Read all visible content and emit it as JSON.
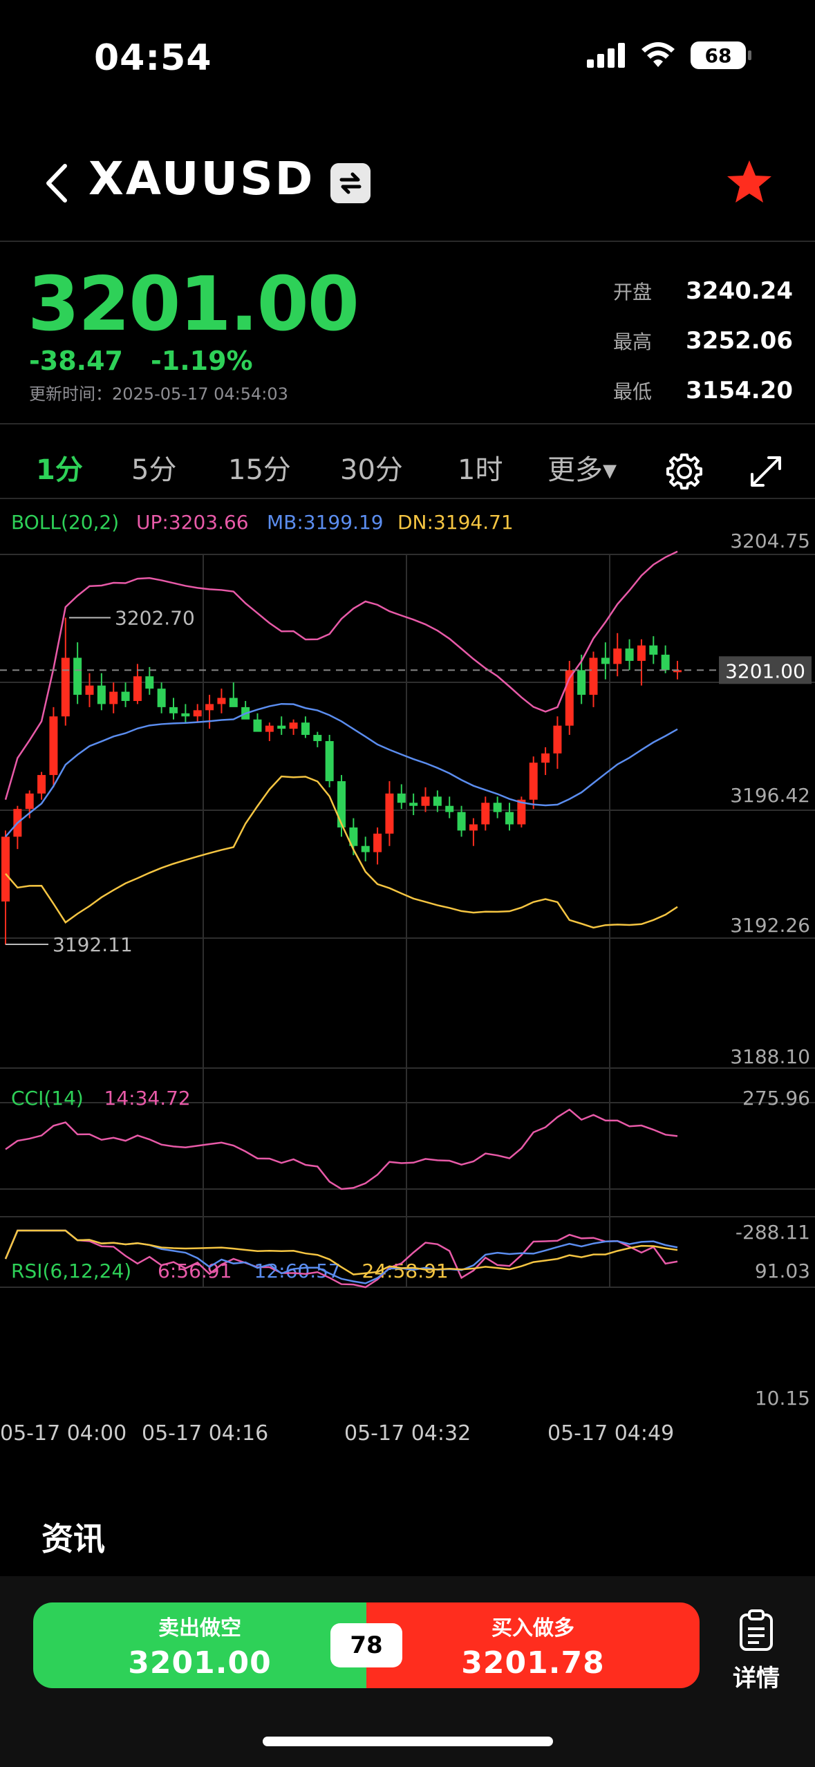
{
  "status_bar": {
    "time": "04:54",
    "battery": "68"
  },
  "header": {
    "symbol": "XAUUSD"
  },
  "quote": {
    "price": "3201.00",
    "change": "-38.47",
    "change_pct": "-1.19%",
    "update_time": "更新时间：2025-05-17 04:54:03",
    "open_label": "开盘",
    "open": "3240.24",
    "high_label": "最高",
    "high": "3252.06",
    "low_label": "最低",
    "low": "3154.20"
  },
  "tabs": [
    "1分",
    "5分",
    "15分",
    "30分",
    "1时",
    "更多▾"
  ],
  "active_tab": 0,
  "colors": {
    "up": "#2ed158",
    "down": "#ff2d1e",
    "boll_up": "#e85aa8",
    "boll_mb": "#5b8def",
    "boll_dn": "#f5c542"
  },
  "chart_data": [
    {
      "type": "candlestick",
      "title": "BOLL(20,2)",
      "legend": [
        "UP:3203.66",
        "MB:3199.19",
        "DN:3194.71"
      ],
      "y_ticks": [
        "3204.75",
        "3196.42",
        "3192.26",
        "3188.10"
      ],
      "ylim": [
        3188.1,
        3204.75
      ],
      "current_price_label": "3201.00",
      "max_label": "3202.70",
      "min_label": "3192.11",
      "x_ticks": [
        "05-17 04:00",
        "05-17 04:16",
        "05-17 04:32",
        "05-17 04:49"
      ],
      "candles": [
        [
          3193.5,
          3192.1,
          3195.8,
          3195.6
        ],
        [
          3195.6,
          3195.2,
          3196.6,
          3196.5
        ],
        [
          3196.5,
          3196.2,
          3197.1,
          3197.0
        ],
        [
          3197.0,
          3196.8,
          3197.7,
          3197.6
        ],
        [
          3197.6,
          3197.2,
          3199.8,
          3199.5
        ],
        [
          3199.5,
          3199.2,
          3202.7,
          3201.4
        ],
        [
          3201.4,
          3199.9,
          3201.9,
          3200.2
        ],
        [
          3200.2,
          3199.8,
          3200.9,
          3200.5
        ],
        [
          3200.5,
          3199.7,
          3200.9,
          3199.9
        ],
        [
          3199.9,
          3199.6,
          3200.6,
          3200.3
        ],
        [
          3200.3,
          3199.8,
          3200.6,
          3200.0
        ],
        [
          3200.0,
          3199.9,
          3201.2,
          3200.8
        ],
        [
          3200.8,
          3200.2,
          3201.1,
          3200.4
        ],
        [
          3200.4,
          3199.6,
          3200.6,
          3199.8
        ],
        [
          3199.8,
          3199.4,
          3200.1,
          3199.6
        ],
        [
          3199.6,
          3199.3,
          3199.9,
          3199.5
        ],
        [
          3199.5,
          3199.3,
          3199.9,
          3199.7
        ],
        [
          3199.7,
          3199.1,
          3200.2,
          3199.9
        ],
        [
          3199.9,
          3199.6,
          3200.4,
          3200.1
        ],
        [
          3200.1,
          3199.9,
          3200.6,
          3199.8
        ],
        [
          3199.8,
          3199.5,
          3200.0,
          3199.4
        ],
        [
          3199.4,
          3199.2,
          3199.6,
          3199.0
        ],
        [
          3199.0,
          3198.7,
          3199.3,
          3199.2
        ],
        [
          3199.2,
          3198.9,
          3199.5,
          3199.1
        ],
        [
          3199.1,
          3198.9,
          3199.4,
          3199.3
        ],
        [
          3199.3,
          3198.8,
          3199.5,
          3198.9
        ],
        [
          3198.9,
          3198.5,
          3199.0,
          3198.7
        ],
        [
          3198.7,
          3197.2,
          3198.9,
          3197.4
        ],
        [
          3197.4,
          3195.6,
          3197.6,
          3195.9
        ],
        [
          3195.9,
          3195.0,
          3196.2,
          3195.3
        ],
        [
          3195.3,
          3194.8,
          3195.6,
          3195.1
        ],
        [
          3195.1,
          3194.7,
          3195.9,
          3195.7
        ],
        [
          3195.7,
          3195.3,
          3197.4,
          3197.0
        ],
        [
          3197.0,
          3196.5,
          3197.3,
          3196.7
        ],
        [
          3196.7,
          3196.3,
          3197.0,
          3196.6
        ],
        [
          3196.6,
          3196.4,
          3197.2,
          3196.9
        ],
        [
          3196.9,
          3196.4,
          3197.1,
          3196.6
        ],
        [
          3196.6,
          3196.2,
          3196.9,
          3196.4
        ],
        [
          3196.4,
          3195.6,
          3196.6,
          3195.8
        ],
        [
          3195.8,
          3195.3,
          3196.2,
          3196.0
        ],
        [
          3196.0,
          3195.8,
          3196.9,
          3196.7
        ],
        [
          3196.7,
          3196.2,
          3196.9,
          3196.4
        ],
        [
          3196.4,
          3195.8,
          3196.7,
          3196.0
        ],
        [
          3196.0,
          3195.9,
          3196.9,
          3196.8
        ],
        [
          3196.8,
          3196.5,
          3198.2,
          3198.0
        ],
        [
          3198.0,
          3197.6,
          3198.5,
          3198.3
        ],
        [
          3198.3,
          3197.8,
          3199.5,
          3199.2
        ],
        [
          3199.2,
          3198.9,
          3201.3,
          3201.0
        ],
        [
          3201.0,
          3199.9,
          3201.5,
          3200.2
        ],
        [
          3200.2,
          3199.8,
          3201.6,
          3201.4
        ],
        [
          3201.4,
          3200.7,
          3201.9,
          3201.2
        ],
        [
          3201.2,
          3200.8,
          3202.2,
          3201.7
        ],
        [
          3201.7,
          3201.0,
          3202.0,
          3201.3
        ],
        [
          3201.3,
          3200.5,
          3202.0,
          3201.8
        ],
        [
          3201.8,
          3201.2,
          3202.1,
          3201.5
        ],
        [
          3201.5,
          3200.9,
          3201.8,
          3201.0
        ],
        [
          3201.0,
          3200.7,
          3201.3,
          3201.0
        ]
      ]
    },
    {
      "type": "line",
      "title": "CCI(14)",
      "legend": [
        "14:34.72"
      ],
      "y_ticks": [
        "275.96",
        "-288.11"
      ]
    },
    {
      "type": "line",
      "title": "RSI(6,12,24)",
      "legend": [
        "6:56.91",
        "12:60.57",
        "24:58.91"
      ],
      "y_ticks": [
        "91.03",
        "10.15"
      ]
    }
  ],
  "news": {
    "heading": "资讯"
  },
  "trade": {
    "sell_label": "卖出做空",
    "sell_price": "3201.00",
    "spread": "78",
    "buy_label": "买入做多",
    "buy_price": "3201.78",
    "detail_label": "详情"
  }
}
